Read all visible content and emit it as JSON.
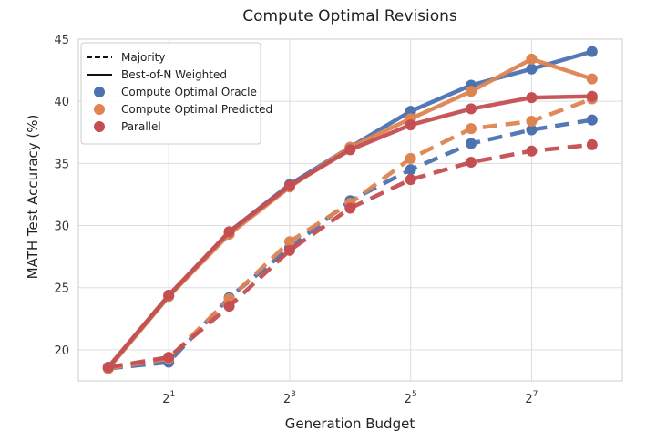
{
  "chart_data": {
    "type": "line",
    "title": "Compute Optimal Revisions",
    "xlabel": "Generation Budget",
    "ylabel": "MATH Test Accuracy (%)",
    "xscale": "log2",
    "x": [
      1,
      2,
      4,
      8,
      16,
      32,
      64,
      128,
      256
    ],
    "xlim": [
      0.71,
      362
    ],
    "ylim": [
      17.5,
      45
    ],
    "xticks": [
      {
        "value": 2,
        "base": "2",
        "exp": "1"
      },
      {
        "value": 8,
        "base": "2",
        "exp": "3"
      },
      {
        "value": 32,
        "base": "2",
        "exp": "5"
      },
      {
        "value": 128,
        "base": "2",
        "exp": "7"
      }
    ],
    "yticks": [
      {
        "value": 20,
        "label": "20"
      },
      {
        "value": 25,
        "label": "25"
      },
      {
        "value": 30,
        "label": "30"
      },
      {
        "value": 35,
        "label": "35"
      },
      {
        "value": 40,
        "label": "40"
      },
      {
        "value": 45,
        "label": "45"
      }
    ],
    "grid": true,
    "legend": {
      "position": "top-left",
      "styles": [
        {
          "label": "Majority",
          "dash": true
        },
        {
          "label": "Best-of-N Weighted",
          "dash": false
        }
      ],
      "methods": [
        {
          "label": "Compute Optimal Oracle",
          "color": "#4c72b0"
        },
        {
          "label": "Compute Optimal Predicted",
          "color": "#dd8452"
        },
        {
          "label": "Parallel",
          "color": "#c44e52"
        }
      ]
    },
    "series": [
      {
        "method": "Compute Optimal Oracle",
        "style": "Majority",
        "color": "#4c72b0",
        "dash": true,
        "values": [
          18.5,
          19.0,
          24.2,
          28.2,
          32.0,
          34.5,
          36.6,
          37.7,
          38.5
        ]
      },
      {
        "method": "Compute Optimal Predicted",
        "style": "Majority",
        "color": "#dd8452",
        "dash": true,
        "values": [
          18.5,
          19.3,
          24.1,
          28.7,
          31.8,
          35.4,
          37.8,
          38.4,
          40.2
        ]
      },
      {
        "method": "Parallel",
        "style": "Majority",
        "color": "#c44e52",
        "dash": true,
        "values": [
          18.6,
          19.4,
          23.5,
          28.0,
          31.4,
          33.7,
          35.1,
          36.0,
          36.5
        ]
      },
      {
        "method": "Compute Optimal Oracle",
        "style": "Best-of-N Weighted",
        "color": "#4c72b0",
        "dash": false,
        "values": [
          18.5,
          24.3,
          29.5,
          33.3,
          36.3,
          39.2,
          41.3,
          42.6,
          44.0
        ]
      },
      {
        "method": "Compute Optimal Predicted",
        "style": "Best-of-N Weighted",
        "color": "#dd8452",
        "dash": false,
        "values": [
          18.5,
          24.3,
          29.3,
          33.1,
          36.3,
          38.6,
          40.8,
          43.4,
          41.8
        ]
      },
      {
        "method": "Parallel",
        "style": "Best-of-N Weighted",
        "color": "#c44e52",
        "dash": false,
        "values": [
          18.6,
          24.4,
          29.5,
          33.2,
          36.1,
          38.1,
          39.4,
          40.3,
          40.4
        ]
      }
    ]
  }
}
